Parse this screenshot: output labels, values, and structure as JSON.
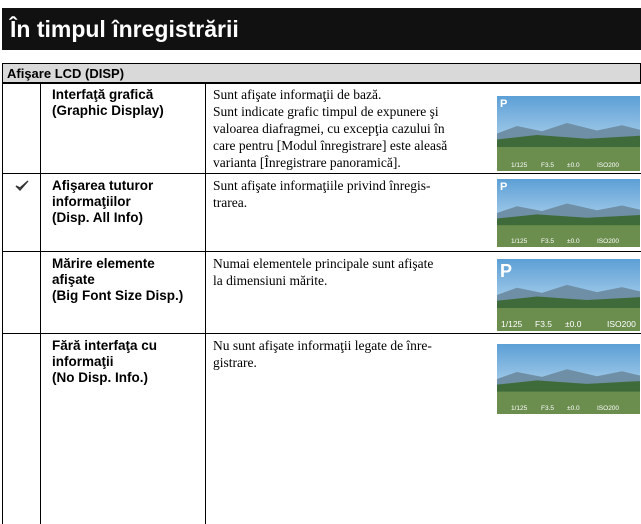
{
  "header": {
    "title": "În timpul înregistrării"
  },
  "section": {
    "title": "Afişare LCD (DISP)",
    "rows": [
      {
        "label_lines": [
          "Interfaţă grafică",
          "(Graphic Display)"
        ],
        "description_lines": [
          "Sunt afişate informaţii de bază.",
          "Sunt indicate grafic timpul de expunere şi",
          "valoarea diafragmei, cu excepţia cazului în",
          "care pentru [Modul înregistrare] este aleasă",
          "varianta [Înregistrare panoramică]."
        ],
        "screen": {
          "mode": "P",
          "readout": [
            "1/125",
            "F3.5",
            "±0.0",
            "ISO200"
          ]
        }
      },
      {
        "label_lines": [
          "Afişarea tuturor",
          "informaţiilor",
          "(Disp. All Info)"
        ],
        "description_lines": [
          "Sunt afişate informaţiile privind înregis-",
          "trarea."
        ],
        "screen": {
          "mode": "P",
          "readout": [
            "1/125",
            "F3.5",
            "±0.0",
            "ISO200"
          ]
        }
      },
      {
        "label_lines": [
          "Mărire elemente",
          "afişate",
          "(Big Font Size Disp.)"
        ],
        "description_lines": [
          "Numai elementele principale sunt afişate",
          "la dimensiuni mărite."
        ],
        "screen": {
          "mode": "P",
          "readout": [
            "1/125",
            "F3.5",
            "±0.0",
            "ISO200"
          ]
        }
      },
      {
        "label_lines": [
          "Fără interfaţa cu",
          "informaţii",
          "(No Disp. Info.)"
        ],
        "description_lines": [
          "Nu sunt afişate informaţii legate de înre-",
          "gistrare."
        ],
        "screen": {
          "readout": [
            "1/125",
            "F3.5",
            "±0.0",
            "ISO200"
          ]
        }
      }
    ]
  }
}
